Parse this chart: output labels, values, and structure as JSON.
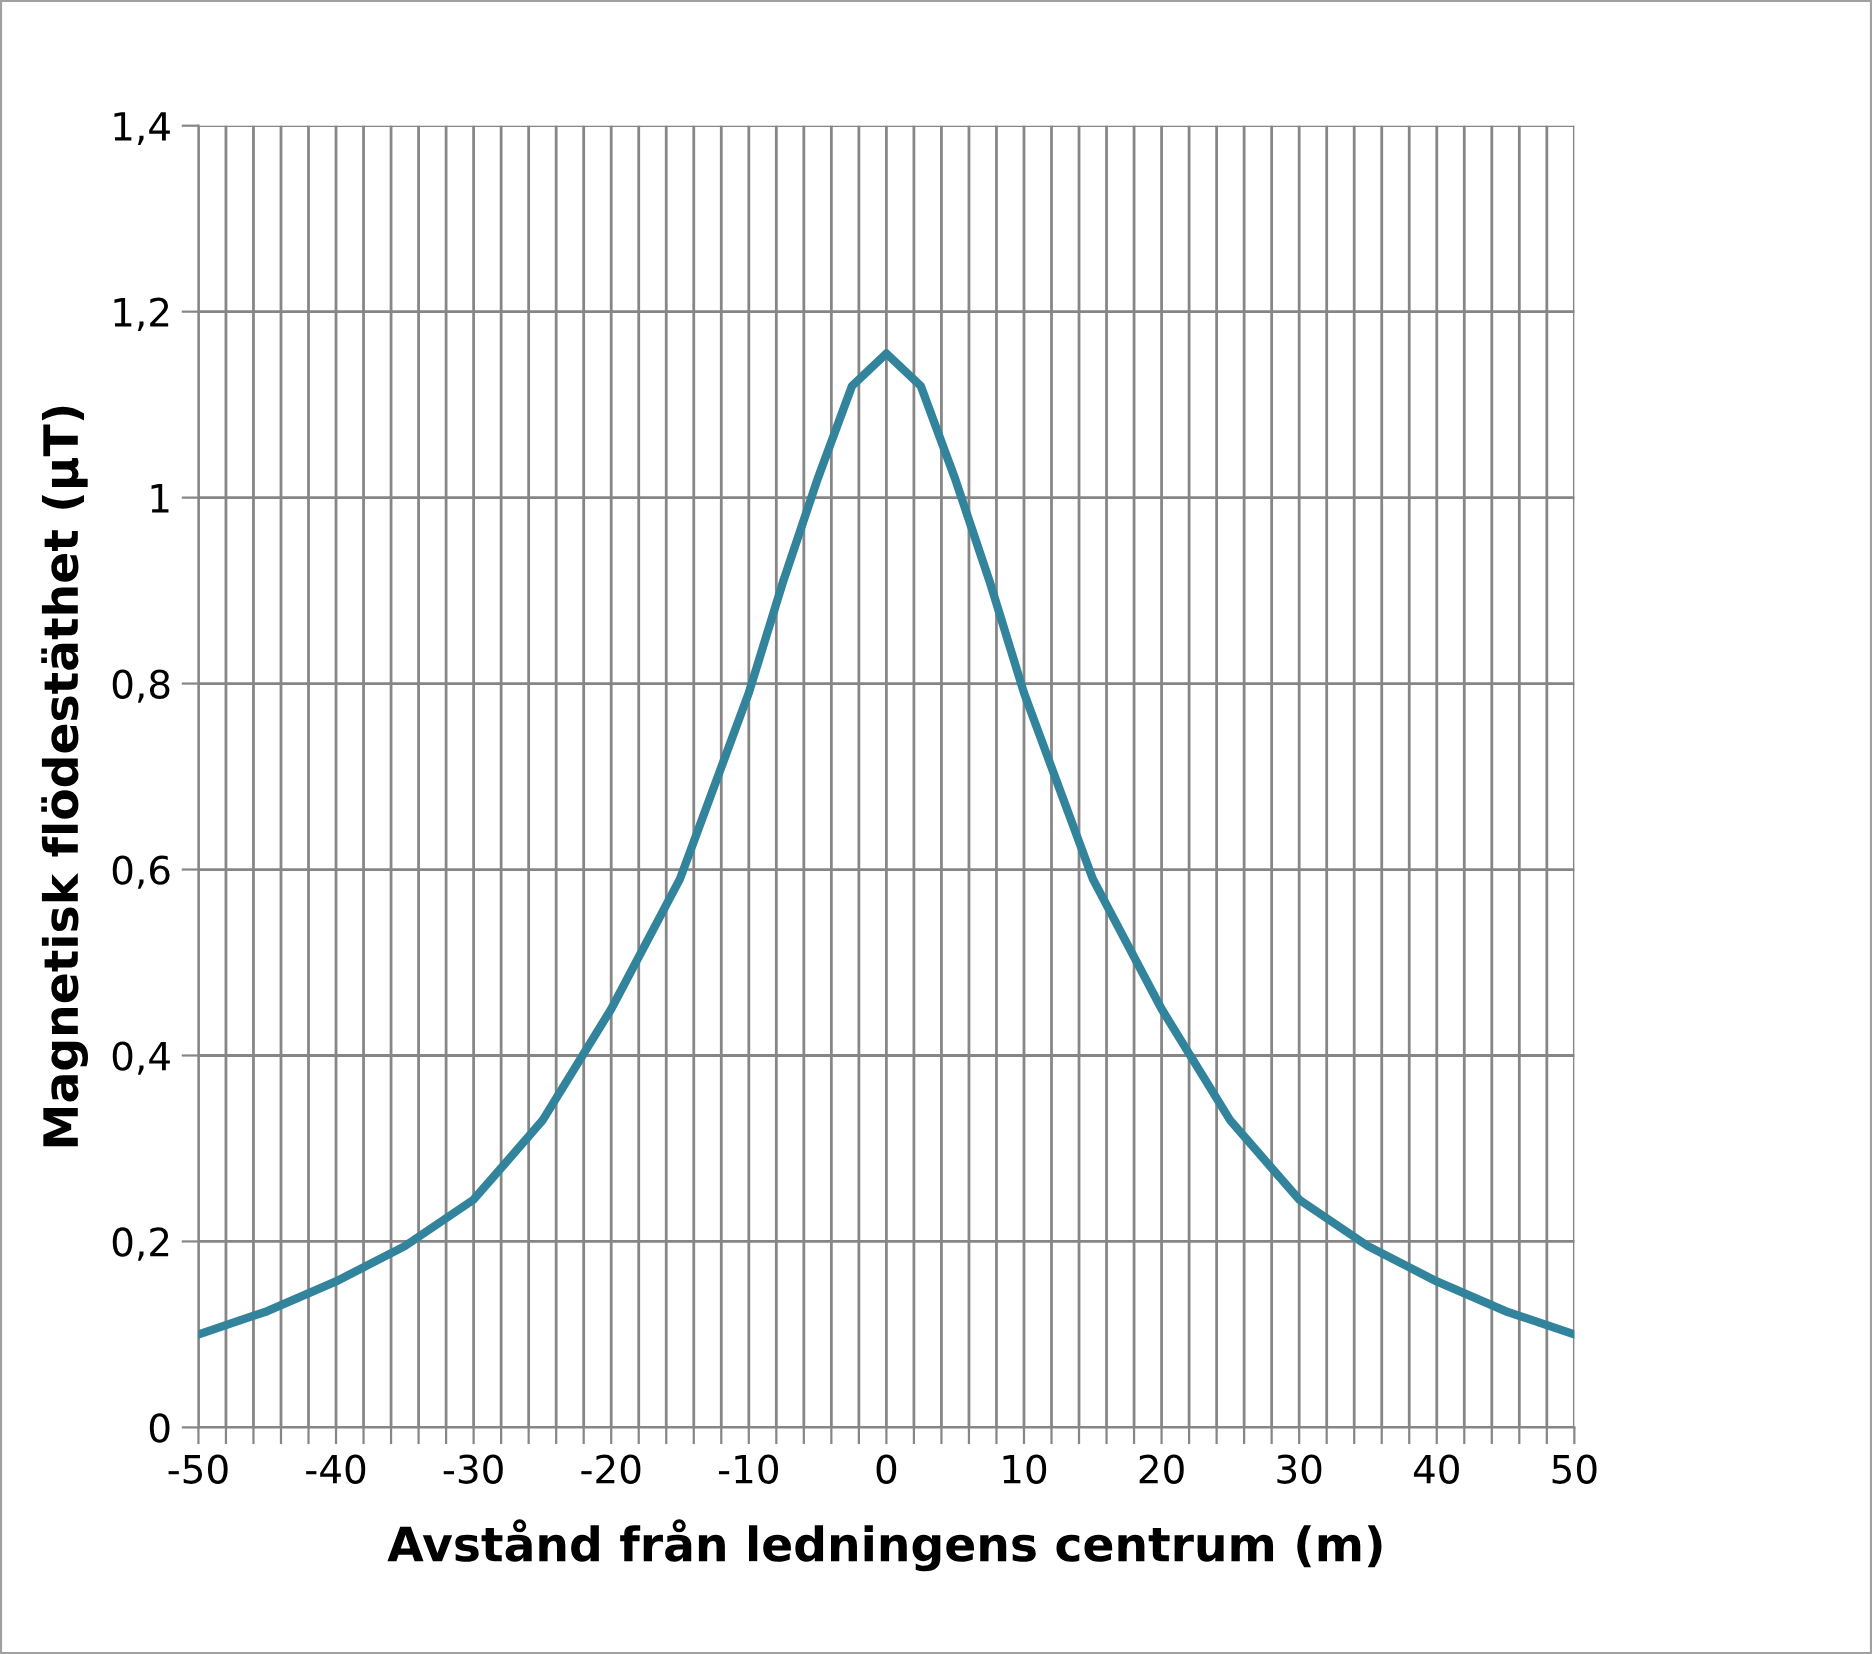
{
  "chart_data": {
    "type": "line",
    "xlabel": "Avstånd från ledningens centrum (m)",
    "ylabel": "Magnetisk flödestäthet (µT)",
    "x": [
      -50,
      -45,
      -40,
      -35,
      -30,
      -25,
      -20,
      -15,
      -10,
      -7.5,
      -5,
      -2.5,
      0,
      2.5,
      5,
      7.5,
      10,
      15,
      20,
      25,
      30,
      35,
      40,
      45,
      50
    ],
    "series": [
      {
        "color": "#31849b",
        "values": [
          0.1,
          0.125,
          0.157,
          0.195,
          0.245,
          0.33,
          0.45,
          0.59,
          0.79,
          0.91,
          1.02,
          1.12,
          1.155,
          1.12,
          1.02,
          0.91,
          0.79,
          0.59,
          0.45,
          0.33,
          0.245,
          0.195,
          0.157,
          0.125,
          0.1
        ]
      }
    ],
    "xlim": [
      -50,
      50
    ],
    "ylim": [
      0,
      1.4
    ],
    "xticks": [
      {
        "value": -50,
        "label": "-50"
      },
      {
        "value": -48,
        "label": null
      },
      {
        "value": -46,
        "label": null
      },
      {
        "value": -44,
        "label": null
      },
      {
        "value": -42,
        "label": null
      },
      {
        "value": -40,
        "label": "-40"
      },
      {
        "value": -38,
        "label": null
      },
      {
        "value": -36,
        "label": null
      },
      {
        "value": -34,
        "label": null
      },
      {
        "value": -32,
        "label": null
      },
      {
        "value": -30,
        "label": "-30"
      },
      {
        "value": -28,
        "label": null
      },
      {
        "value": -26,
        "label": null
      },
      {
        "value": -24,
        "label": null
      },
      {
        "value": -22,
        "label": null
      },
      {
        "value": -20,
        "label": "-20"
      },
      {
        "value": -18,
        "label": null
      },
      {
        "value": -16,
        "label": null
      },
      {
        "value": -14,
        "label": null
      },
      {
        "value": -12,
        "label": null
      },
      {
        "value": -10,
        "label": "-10"
      },
      {
        "value": -8,
        "label": null
      },
      {
        "value": -6,
        "label": null
      },
      {
        "value": -4,
        "label": null
      },
      {
        "value": -2,
        "label": null
      },
      0,
      {
        "value": 2,
        "label": null
      },
      {
        "value": 4,
        "label": null
      },
      {
        "value": 6,
        "label": null
      },
      {
        "value": 8,
        "label": null
      },
      10,
      {
        "value": 12,
        "label": null
      },
      {
        "value": 14,
        "label": null
      },
      {
        "value": 16,
        "label": null
      },
      {
        "value": 18,
        "label": null
      },
      20,
      {
        "value": 22,
        "label": null
      },
      {
        "value": 24,
        "label": null
      },
      {
        "value": 26,
        "label": null
      },
      {
        "value": 28,
        "label": null
      },
      30,
      {
        "value": 32,
        "label": null
      },
      {
        "value": 34,
        "label": null
      },
      {
        "value": 36,
        "label": null
      },
      {
        "value": 38,
        "label": null
      },
      40,
      {
        "value": 42,
        "label": null
      },
      {
        "value": 44,
        "label": null
      },
      {
        "value": 46,
        "label": null
      },
      {
        "value": 48,
        "label": null
      },
      50
    ],
    "yticks": [
      0,
      {
        "value": 0.2,
        "label": "0,2"
      },
      {
        "value": 0.4,
        "label": "0,4"
      },
      {
        "value": 0.6,
        "label": "0,6"
      },
      {
        "value": 0.8,
        "label": "0,8"
      },
      {
        "value": 1,
        "label": "1"
      },
      {
        "value": 1.2,
        "label": "1,2"
      },
      {
        "value": 1.4,
        "label": "1,4"
      }
    ],
    "grid": true,
    "marker": "none",
    "line_style": "solid"
  }
}
